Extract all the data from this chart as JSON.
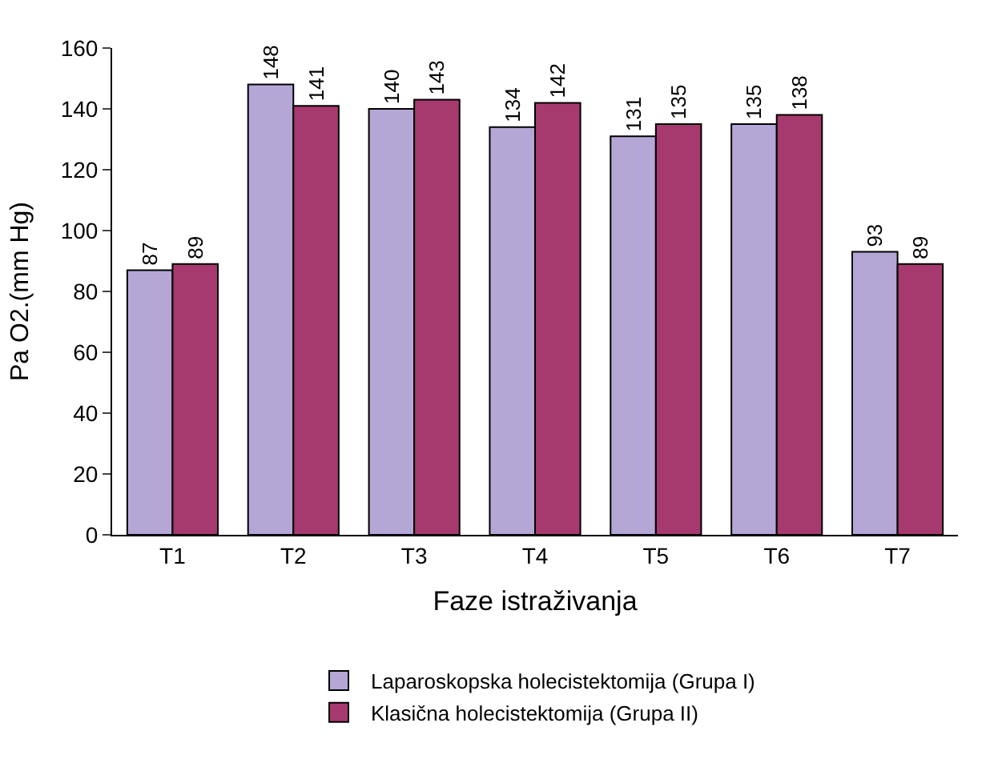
{
  "chart_data": {
    "type": "bar",
    "xlabel": "Faze istraživanja",
    "ylabel": "Pa O2.(mm Hg)",
    "categories": [
      "T1",
      "T2",
      "T3",
      "T4",
      "T5",
      "T6",
      "T7"
    ],
    "series": [
      {
        "name": "Laparoskopska holecistektomija (Grupa I)",
        "color": "#b4a7d6",
        "values": [
          87,
          148,
          140,
          134,
          131,
          135,
          93
        ]
      },
      {
        "name": "Klasična holecistektomija (Grupa II)",
        "color": "#a63a6e",
        "values": [
          89,
          141,
          143,
          142,
          135,
          138,
          89
        ]
      }
    ],
    "ylim": [
      0,
      160
    ],
    "yticks": [
      0,
      20,
      40,
      60,
      80,
      100,
      120,
      140,
      160
    ],
    "legend": "bottom",
    "data_labels": true
  }
}
